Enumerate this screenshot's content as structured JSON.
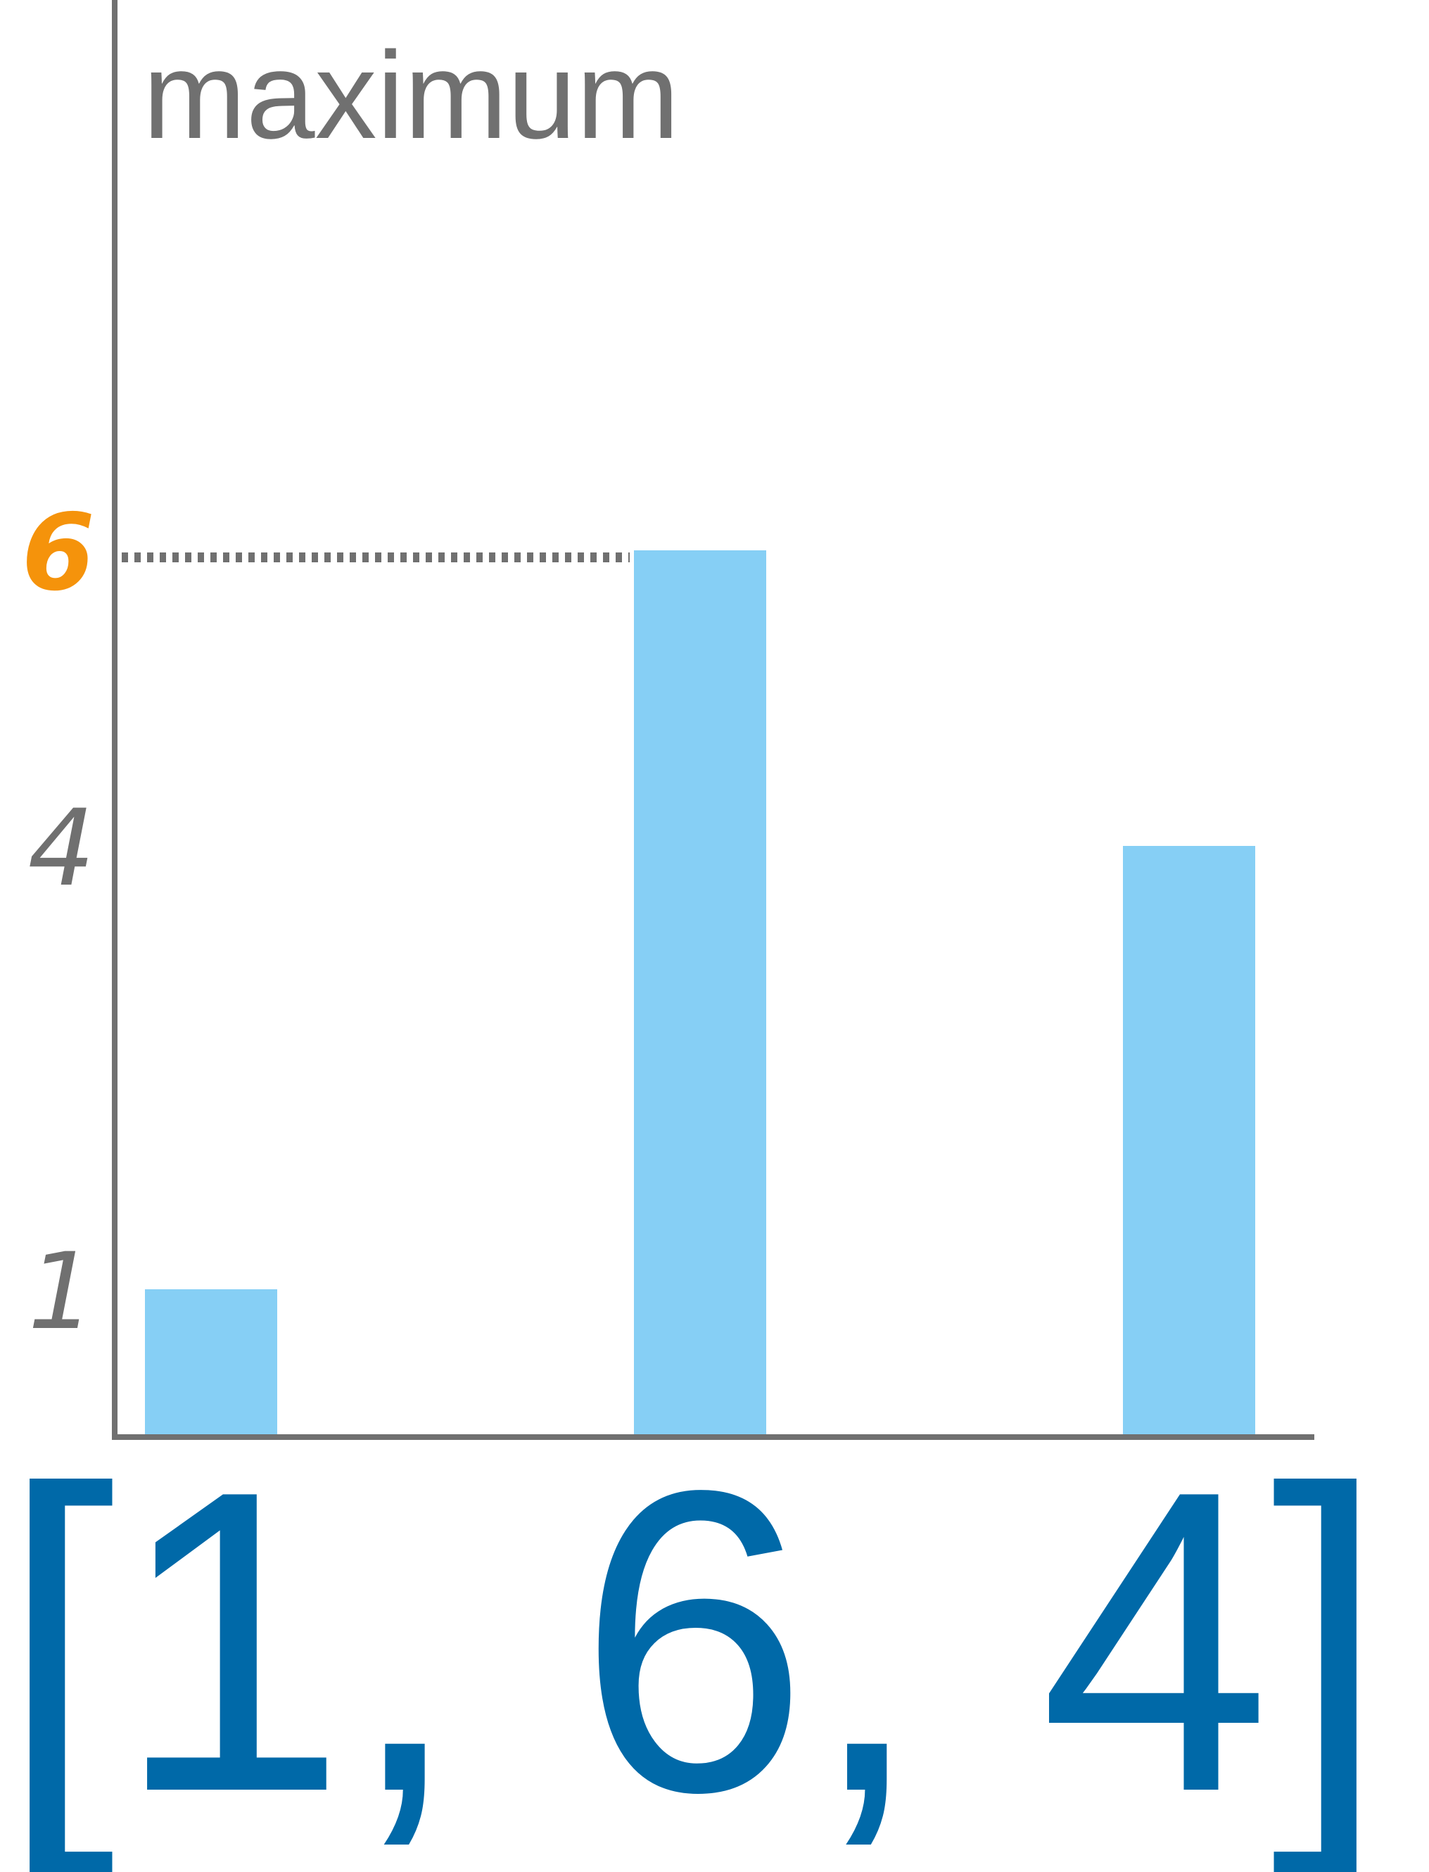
{
  "chart_data": {
    "type": "bar",
    "categories": [
      "",
      "",
      ""
    ],
    "values": [
      1,
      6,
      4
    ],
    "yticks": [
      1,
      4,
      6
    ],
    "ylim": [
      0,
      6
    ],
    "max_value": 6,
    "annotation": "maximum",
    "array_label": "[1, 6, 4]",
    "grid": false,
    "title": "",
    "xlabel": "",
    "ylabel": "",
    "colors": {
      "bar": "#86cff5",
      "axis": "#707070",
      "max_tick": "#f5930b",
      "array_text": "#0069a8",
      "annotation": "#707070"
    }
  }
}
